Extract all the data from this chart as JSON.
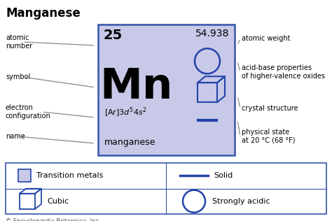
{
  "title": "Manganese",
  "atomic_number": "25",
  "atomic_weight": "54.938",
  "symbol": "Mn",
  "name": "manganese",
  "cell_bg": "#c8c8e8",
  "cell_border": "#3355aa",
  "bg_color": "#ffffff",
  "blue_color": "#2244aa",
  "left_labels": [
    "atomic\nnumber",
    "symbol",
    "electron\nconfiguration",
    "name"
  ],
  "right_labels": [
    "atomic weight",
    "acid-base properties\nof higher-valence oxides",
    "crystal structure",
    "physical state\nat 20 °C (68 °F)"
  ],
  "copyright": "© Encyclopædia Britannica, Inc.",
  "legend_items": [
    "Transition metals",
    "Solid",
    "Cubic",
    "Strongly acidic"
  ],
  "fig_w": 4.74,
  "fig_h": 3.16,
  "dpi": 100
}
